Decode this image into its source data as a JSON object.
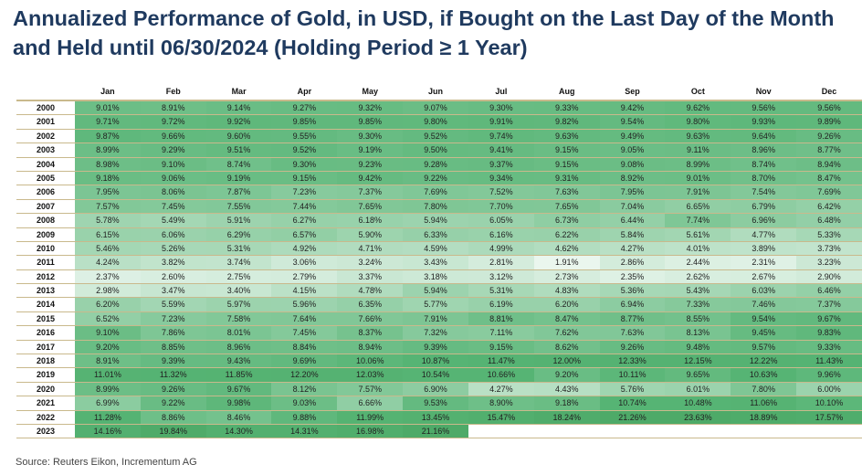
{
  "title": "Annualized Performance of Gold, in USD, if Bought on the Last Day of the Month and Held until 06/30/2024 (Holding Period ≥ 1 Year)",
  "source": "Source: Reuters Eikon, Incrementum AG",
  "colors": {
    "title": "#1f3a5f",
    "low": "#eaf6ee",
    "high": "#56b474",
    "grid": "#c9b98c"
  },
  "chart_data": {
    "type": "heatmap",
    "title": "Annualized Performance of Gold, in USD, if Bought on the Last Day of the Month and Held until 06/30/2024 (Holding Period ≥ 1 Year)",
    "columns": [
      "Jan",
      "Feb",
      "Mar",
      "Apr",
      "May",
      "Jun",
      "Jul",
      "Aug",
      "Sep",
      "Oct",
      "Nov",
      "Dec"
    ],
    "rows": [
      "2000",
      "2001",
      "2002",
      "2003",
      "2004",
      "2005",
      "2006",
      "2007",
      "2008",
      "2009",
      "2010",
      "2011",
      "2012",
      "2013",
      "2014",
      "2015",
      "2016",
      "2017",
      "2018",
      "2019",
      "2020",
      "2021",
      "2022",
      "2023"
    ],
    "values": [
      [
        9.01,
        8.91,
        9.14,
        9.27,
        9.32,
        9.07,
        9.3,
        9.33,
        9.42,
        9.62,
        9.56,
        9.56
      ],
      [
        9.71,
        9.72,
        9.92,
        9.85,
        9.85,
        9.8,
        9.91,
        9.82,
        9.54,
        9.8,
        9.93,
        9.89
      ],
      [
        9.87,
        9.66,
        9.6,
        9.55,
        9.3,
        9.52,
        9.74,
        9.63,
        9.49,
        9.63,
        9.64,
        9.26
      ],
      [
        8.99,
        9.29,
        9.51,
        9.52,
        9.19,
        9.5,
        9.41,
        9.15,
        9.05,
        9.11,
        8.96,
        8.77
      ],
      [
        8.98,
        9.1,
        8.74,
        9.3,
        9.23,
        9.28,
        9.37,
        9.15,
        9.08,
        8.99,
        8.74,
        8.94
      ],
      [
        9.18,
        9.06,
        9.19,
        9.15,
        9.42,
        9.22,
        9.34,
        9.31,
        8.92,
        9.01,
        8.7,
        8.47
      ],
      [
        7.95,
        8.06,
        7.87,
        7.23,
        7.37,
        7.69,
        7.52,
        7.63,
        7.95,
        7.91,
        7.54,
        7.69
      ],
      [
        7.57,
        7.45,
        7.55,
        7.44,
        7.65,
        7.8,
        7.7,
        7.65,
        7.04,
        6.65,
        6.79,
        6.42
      ],
      [
        5.78,
        5.49,
        5.91,
        6.27,
        6.18,
        5.94,
        6.05,
        6.73,
        6.44,
        7.74,
        6.96,
        6.48
      ],
      [
        6.15,
        6.06,
        6.29,
        6.57,
        5.9,
        6.33,
        6.16,
        6.22,
        5.84,
        5.61,
        4.77,
        5.33
      ],
      [
        5.46,
        5.26,
        5.31,
        4.92,
        4.71,
        4.59,
        4.99,
        4.62,
        4.27,
        4.01,
        3.89,
        3.73
      ],
      [
        4.24,
        3.82,
        3.74,
        3.06,
        3.24,
        3.43,
        2.81,
        1.91,
        2.86,
        2.44,
        2.31,
        3.23
      ],
      [
        2.37,
        2.6,
        2.75,
        2.79,
        3.37,
        3.18,
        3.12,
        2.73,
        2.35,
        2.62,
        2.67,
        2.9
      ],
      [
        2.98,
        3.47,
        3.4,
        4.15,
        4.78,
        5.94,
        5.31,
        4.83,
        5.36,
        5.43,
        6.03,
        6.46
      ],
      [
        6.2,
        5.59,
        5.97,
        5.96,
        6.35,
        5.77,
        6.19,
        6.2,
        6.94,
        7.33,
        7.46,
        7.37
      ],
      [
        6.52,
        7.23,
        7.58,
        7.64,
        7.66,
        7.91,
        8.81,
        8.47,
        8.77,
        8.55,
        9.54,
        9.67
      ],
      [
        9.1,
        7.86,
        8.01,
        7.45,
        8.37,
        7.32,
        7.11,
        7.62,
        7.63,
        8.13,
        9.45,
        9.83
      ],
      [
        9.2,
        8.85,
        8.96,
        8.84,
        8.94,
        9.39,
        9.15,
        8.62,
        9.26,
        9.48,
        9.57,
        9.33
      ],
      [
        8.91,
        9.39,
        9.43,
        9.69,
        10.06,
        10.87,
        11.47,
        12.0,
        12.33,
        12.15,
        12.22,
        11.43
      ],
      [
        11.01,
        11.32,
        11.85,
        12.2,
        12.03,
        10.54,
        10.66,
        9.2,
        10.11,
        9.65,
        10.63,
        9.96
      ],
      [
        8.99,
        9.26,
        9.67,
        8.12,
        7.57,
        6.9,
        4.27,
        4.43,
        5.76,
        6.01,
        7.8,
        6.0
      ],
      [
        6.99,
        9.22,
        9.98,
        9.03,
        6.66,
        9.53,
        8.9,
        9.18,
        10.74,
        10.48,
        11.06,
        10.1
      ],
      [
        11.28,
        8.86,
        8.46,
        9.88,
        11.99,
        13.45,
        15.47,
        18.24,
        21.26,
        23.63,
        18.89,
        17.57
      ],
      [
        14.16,
        19.84,
        14.3,
        14.31,
        16.98,
        21.16,
        null,
        null,
        null,
        null,
        null,
        null
      ]
    ],
    "unit": "%"
  }
}
